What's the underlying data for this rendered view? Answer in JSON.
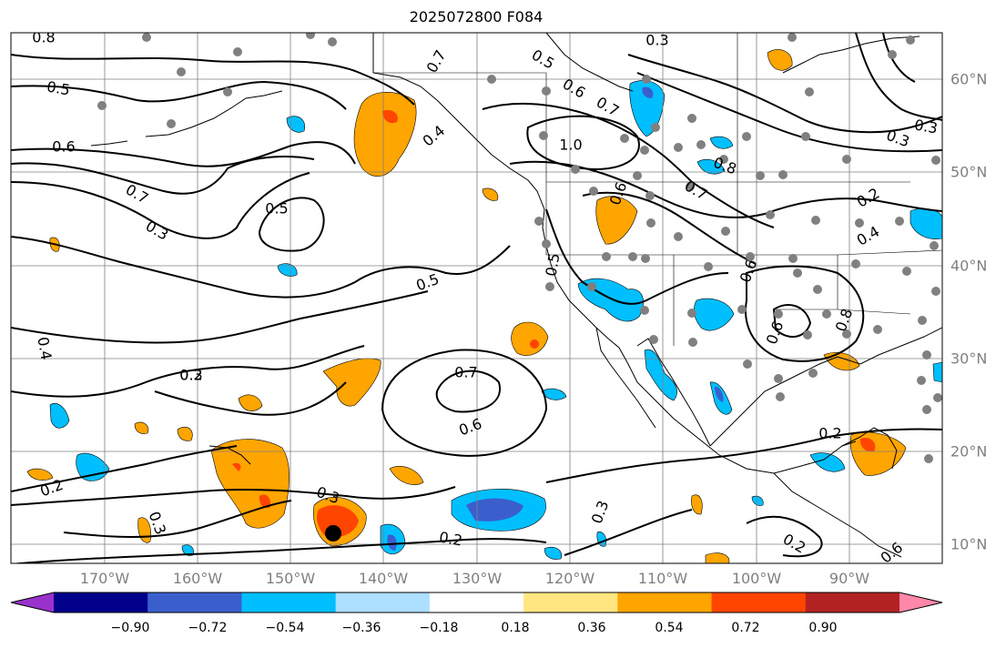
{
  "title": "2025072800 F084",
  "lon_labels": [
    "170°W",
    "160°W",
    "150°W",
    "140°W",
    "130°W",
    "120°W",
    "110°W",
    "100°W",
    "90°W"
  ],
  "lat_labels": [
    "60°N",
    "50°N",
    "40°N",
    "30°N",
    "20°N",
    "10°N"
  ],
  "colorbar": {
    "labels": [
      "−0.90",
      "−0.72",
      "−0.54",
      "−0.36",
      "−0.18",
      "0.18",
      "0.36",
      "0.54",
      "0.72",
      "0.90"
    ],
    "colors": [
      "#9932CC",
      "#00008B",
      "#3A5FCD",
      "#00BFFF",
      "#ADDFFF",
      "#FFFFFF",
      "#FFE680",
      "#FFA500",
      "#FF4500",
      "#B22222",
      "#FF88AA"
    ]
  },
  "contour_labels": [
    "0.8",
    "0.3",
    "0.7",
    "0.5",
    "0.6",
    "0.7",
    "0.4",
    "1.0",
    "0.8",
    "0.6",
    "0.5",
    "0.5",
    "0.7",
    "0.6",
    "0.7",
    "0.3",
    "0.5",
    "0.6",
    "0.5",
    "0.8",
    "0.6",
    "0.2",
    "0.4",
    "0.3",
    "0.4",
    "0.3",
    "0.7",
    "0.6",
    "0.2",
    "0.3",
    "0.3",
    "0.2",
    "0.3",
    "0.2",
    "0.6",
    "0.3",
    "0.2",
    "0.2"
  ],
  "colors": {
    "land": "#000000",
    "grid": "#808080",
    "contour": "#000000",
    "station": "#808080",
    "marker": "#000000"
  },
  "icons": {
    "marker": "storm-center-icon",
    "station": "station-dot-icon"
  }
}
